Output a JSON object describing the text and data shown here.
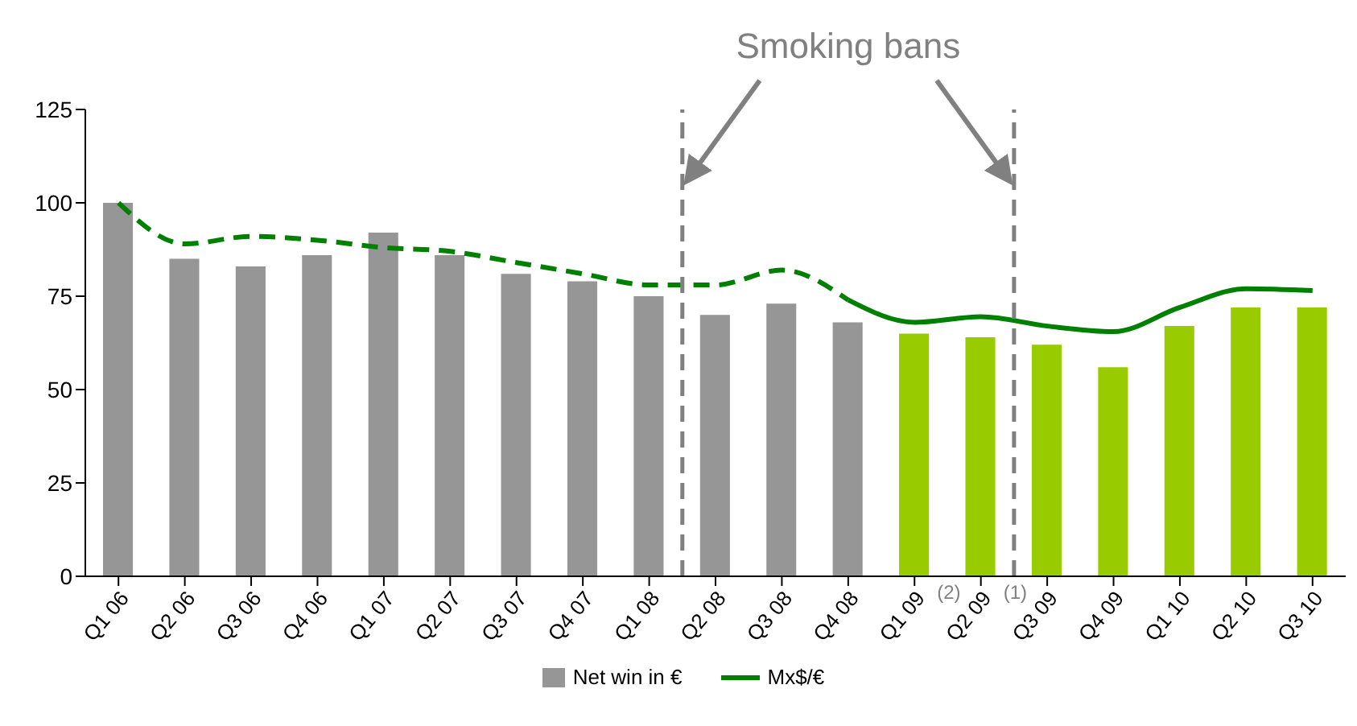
{
  "chart_data": {
    "type": "bar",
    "categories": [
      "Q1 06",
      "Q2 06",
      "Q3 06",
      "Q4 06",
      "Q1 07",
      "Q2 07",
      "Q3 07",
      "Q4 07",
      "Q1 08",
      "Q2 08",
      "Q3 08",
      "Q4 08",
      "Q1 09",
      "Q2 09",
      "Q3 09",
      "Q4 09",
      "Q1 10",
      "Q2 10",
      "Q3 10"
    ],
    "series": [
      {
        "name": "Net win in €",
        "color": "#969696",
        "colors": [
          "#969696",
          "#969696",
          "#969696",
          "#969696",
          "#969696",
          "#969696",
          "#969696",
          "#969696",
          "#969696",
          "#969696",
          "#969696",
          "#969696",
          "#99cc00",
          "#99cc00",
          "#99cc00",
          "#99cc00",
          "#99cc00",
          "#99cc00",
          "#99cc00"
        ],
        "values": [
          100,
          85,
          83,
          86,
          92,
          86,
          81,
          79,
          75,
          70,
          73,
          68,
          65,
          64,
          62,
          56,
          67,
          72,
          72
        ]
      },
      {
        "name": "Mx$/€",
        "type": "line",
        "color": "#008000",
        "line_style": "solid",
        "values": [
          null,
          null,
          null,
          null,
          null,
          null,
          null,
          null,
          null,
          null,
          null,
          74,
          68,
          69.5,
          67,
          65.5,
          72,
          77,
          76.5
        ]
      },
      {
        "type": "line",
        "color": "#008000",
        "line_style": "dashed",
        "values": [
          100,
          89,
          91,
          90,
          88,
          87,
          84,
          81,
          78,
          78,
          82,
          74,
          null,
          null,
          null,
          null,
          null,
          null,
          null
        ]
      }
    ],
    "ylim": [
      0,
      125
    ],
    "yticks": [
      0,
      25,
      50,
      75,
      100,
      125
    ],
    "grid": false,
    "legend": "bottom",
    "marker": "none",
    "annotations": [
      "Smoking bans",
      "(2)",
      "(1)"
    ]
  }
}
